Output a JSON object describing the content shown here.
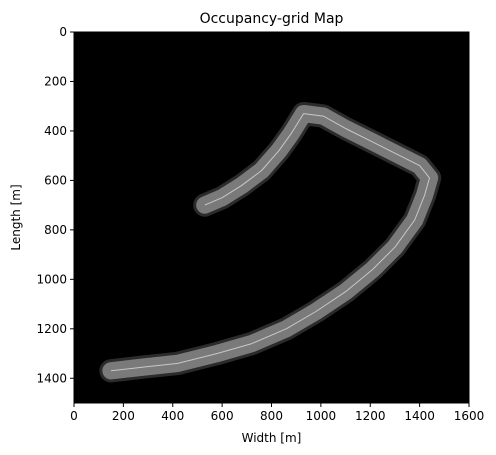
{
  "chart_data": {
    "type": "heatmap",
    "title": "Occupancy-grid Map",
    "xlabel": "Width [m]",
    "ylabel": "Length [m]",
    "xlim": [
      0,
      1600
    ],
    "ylim": [
      1500,
      0
    ],
    "y_inverted": true,
    "xticks": [
      0,
      200,
      400,
      600,
      800,
      1000,
      1200,
      1400,
      1600
    ],
    "yticks": [
      0,
      200,
      400,
      600,
      800,
      1000,
      1200,
      1400
    ],
    "grid": false,
    "legend": "none",
    "colormap": "grayscale (black = unknown, gray = free space)",
    "background_color": "#000000",
    "free_space_color": "#7a7a7a",
    "trajectory_color": "#c8c8c8",
    "trajectory": {
      "name": "",
      "x": [
        530,
        600,
        680,
        760,
        830,
        880,
        930,
        1010,
        1100,
        1200,
        1300,
        1400,
        1440,
        1420,
        1380,
        1300,
        1210,
        1100,
        980,
        860,
        720,
        580,
        420,
        280,
        150
      ],
      "y": [
        700,
        670,
        620,
        560,
        480,
        410,
        330,
        340,
        390,
        440,
        490,
        540,
        590,
        660,
        760,
        870,
        960,
        1050,
        1130,
        1200,
        1260,
        1300,
        1340,
        1355,
        1370
      ]
    },
    "free_region_half_width_m": 35
  }
}
